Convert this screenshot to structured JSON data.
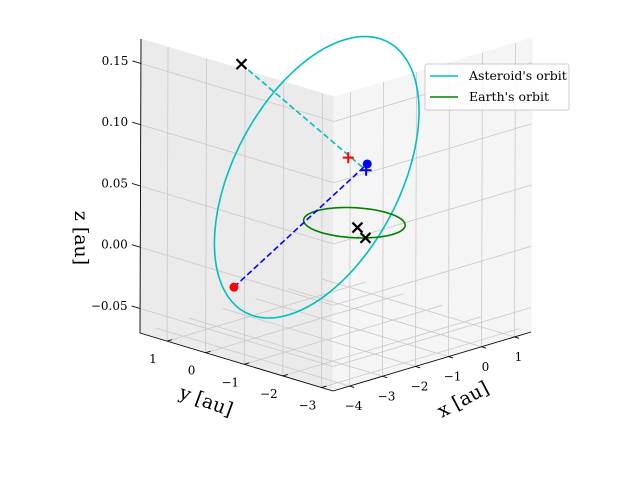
{
  "chart_data": {
    "type": "line",
    "projection": "3d",
    "title": "",
    "xlabel": "x [au]",
    "ylabel": "y [au]",
    "zlabel": "z [au]",
    "xlim": [
      -4.5,
      1.5
    ],
    "ylim": [
      -3.3,
      1.7
    ],
    "zlim": [
      -0.07,
      0.17
    ],
    "x_ticks": [
      "−4",
      "−3",
      "−2",
      "−1",
      "0",
      "1"
    ],
    "y_ticks": [
      "−3",
      "−2",
      "−1",
      "0",
      "1"
    ],
    "z_ticks": [
      "−0.05",
      "0.00",
      "0.05",
      "0.10",
      "0.15"
    ],
    "grid": true,
    "legend_position": "top-right",
    "series": [
      {
        "name": "Asteroid's orbit",
        "color": "#00bfbf",
        "kind": "ellipse",
        "center": [
          -1.5,
          -0.3,
          0.052
        ],
        "semi_major": 3.0,
        "semi_minor": 2.0,
        "z_amplitude": 0.085
      },
      {
        "name": "Earth's orbit",
        "color": "#008000",
        "kind": "circle",
        "center": [
          0.0,
          0.0,
          0.0
        ],
        "radius": 1.0
      }
    ],
    "markers": [
      {
        "point": [
          -4.35,
          -0.6,
          -0.012
        ],
        "symbol": "dot",
        "color": "#ff0000"
      },
      {
        "point": [
          0.5,
          0.1,
          0.043
        ],
        "symbol": "dot",
        "color": "#0000ff"
      },
      {
        "point": [
          -1.45,
          1.7,
          0.125
        ],
        "symbol": "x",
        "color": "#000000"
      },
      {
        "point": [
          -0.6,
          -0.8,
          0.0
        ],
        "symbol": "x",
        "color": "#000000"
      },
      {
        "point": [
          -0.2,
          -0.25,
          0.0
        ],
        "symbol": "x",
        "color": "#000000"
      },
      {
        "point": [
          0.35,
          0.0,
          0.04
        ],
        "symbol": "plus",
        "color": "#0000ff"
      },
      {
        "point": [
          0.1,
          0.25,
          0.05
        ],
        "symbol": "plus",
        "color": "#ff0000"
      }
    ],
    "connectors": [
      {
        "from": [
          -4.35,
          -0.6,
          -0.012
        ],
        "to": [
          0.5,
          0.1,
          0.043
        ],
        "color": "#0000ff",
        "style": "dashed"
      },
      {
        "from": [
          -1.45,
          1.7,
          0.125
        ],
        "to": [
          0.35,
          0.0,
          0.04
        ],
        "color": "#00bfbf",
        "style": "dashed"
      }
    ]
  }
}
